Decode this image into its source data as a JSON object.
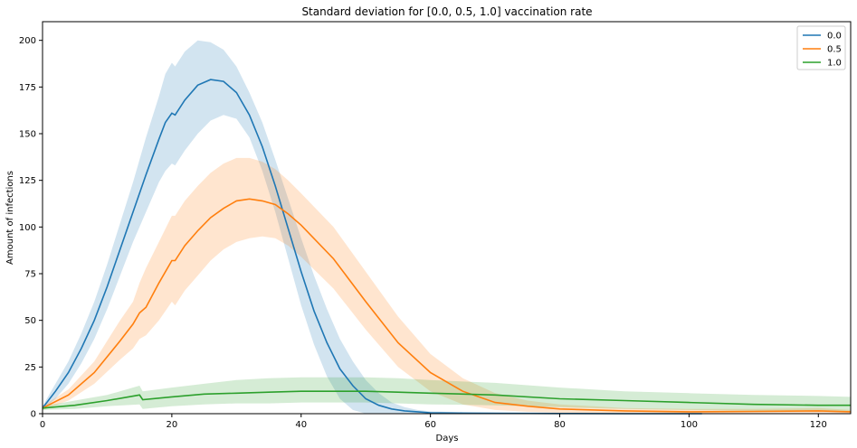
{
  "chart_data": {
    "type": "line",
    "title": "Standard deviation for [0.0, 0.5, 1.0] vaccination rate",
    "xlabel": "Days",
    "ylabel": "Amount of infections",
    "xlim": [
      0,
      125
    ],
    "ylim": [
      0,
      210
    ],
    "xticks": [
      0,
      20,
      40,
      60,
      80,
      100,
      120
    ],
    "yticks": [
      0,
      25,
      50,
      75,
      100,
      125,
      150,
      175,
      200
    ],
    "grid": false,
    "legend_position": "top-right",
    "series": [
      {
        "name": "0.0",
        "color": "#1f77b4",
        "x": [
          0,
          2,
          4,
          6,
          8,
          10,
          12,
          14,
          16,
          18,
          19,
          20,
          20.5,
          22,
          24,
          26,
          28,
          30,
          32,
          34,
          36,
          38,
          40,
          42,
          44,
          46,
          48,
          50,
          52,
          54,
          56,
          58,
          60,
          65,
          70,
          80,
          90,
          100,
          102
        ],
        "mean": [
          3,
          12,
          22,
          35,
          50,
          68,
          88,
          108,
          128,
          147,
          156,
          161,
          160,
          168,
          176,
          179,
          178,
          172,
          160,
          143,
          122,
          99,
          76,
          55,
          38,
          24,
          15,
          8,
          4.5,
          2.5,
          1.5,
          1,
          0.5,
          0.3,
          0.2,
          0.1,
          0,
          0,
          0
        ],
        "lower": [
          2,
          8,
          16,
          27,
          40,
          56,
          74,
          92,
          108,
          124,
          130,
          134,
          133,
          141,
          150,
          157,
          160,
          158,
          148,
          130,
          108,
          83,
          58,
          37,
          20,
          8,
          2,
          0,
          0,
          0,
          0,
          0,
          0,
          0,
          0,
          0,
          0,
          0,
          0
        ],
        "upper": [
          4,
          16,
          28,
          43,
          60,
          80,
          102,
          124,
          148,
          170,
          182,
          188,
          186,
          194,
          200,
          199,
          195,
          186,
          172,
          156,
          136,
          115,
          94,
          74,
          56,
          40,
          28,
          18,
          11,
          6,
          3.5,
          2,
          1.2,
          0.8,
          0.5,
          0.3,
          0.2,
          0.1,
          0
        ]
      },
      {
        "name": "0.5",
        "color": "#ff7f0e",
        "x": [
          0,
          4,
          8,
          12,
          14,
          15,
          16,
          18,
          20,
          20.5,
          22,
          24,
          26,
          28,
          30,
          32,
          34,
          36,
          38,
          40,
          45,
          50,
          55,
          60,
          65,
          70,
          75,
          80,
          90,
          100,
          110,
          120,
          125
        ],
        "mean": [
          3,
          10,
          22,
          39,
          48,
          54,
          57,
          70,
          82,
          82,
          90,
          98,
          105,
          110,
          114,
          115,
          114,
          112,
          107,
          101,
          83,
          60,
          38,
          22,
          12,
          6,
          4,
          2.5,
          1.5,
          1,
          1.2,
          1.5,
          1
        ],
        "lower": [
          2,
          7,
          16,
          29,
          35,
          40,
          42,
          50,
          60,
          58,
          66,
          74,
          82,
          88,
          92,
          94,
          95,
          94,
          90,
          84,
          67,
          45,
          25,
          12,
          5,
          2,
          1,
          0.5,
          0,
          0,
          0,
          0,
          0
        ],
        "upper": [
          4,
          13,
          28,
          50,
          60,
          70,
          78,
          92,
          106,
          106,
          114,
          122,
          129,
          134,
          137,
          137,
          135,
          131,
          125,
          118,
          100,
          76,
          52,
          32,
          19,
          11,
          7,
          5,
          3,
          2.5,
          2.5,
          3,
          2
        ]
      },
      {
        "name": "1.0",
        "color": "#2ca02c",
        "x": [
          0,
          5,
          10,
          15,
          15.5,
          20,
          25,
          30,
          35,
          40,
          45,
          50,
          55,
          60,
          70,
          80,
          90,
          100,
          110,
          120,
          125
        ],
        "mean": [
          3,
          4.5,
          7,
          10,
          7.5,
          9,
          10.5,
          11,
          11.5,
          12,
          12,
          12,
          11.5,
          11,
          10,
          8,
          7,
          6,
          5,
          4.5,
          4.5
        ],
        "lower": [
          2,
          2.5,
          4,
          5,
          2.5,
          4,
          5,
          5.5,
          5.5,
          6,
          6,
          6,
          5.5,
          5,
          4.5,
          3.5,
          2.5,
          2,
          1.5,
          1,
          1
        ],
        "upper": [
          4,
          7,
          10,
          15,
          12,
          14,
          16,
          18,
          19,
          19.5,
          19.5,
          19.5,
          19,
          18,
          16.5,
          14,
          12,
          11,
          10,
          9.5,
          9
        ]
      }
    ]
  }
}
